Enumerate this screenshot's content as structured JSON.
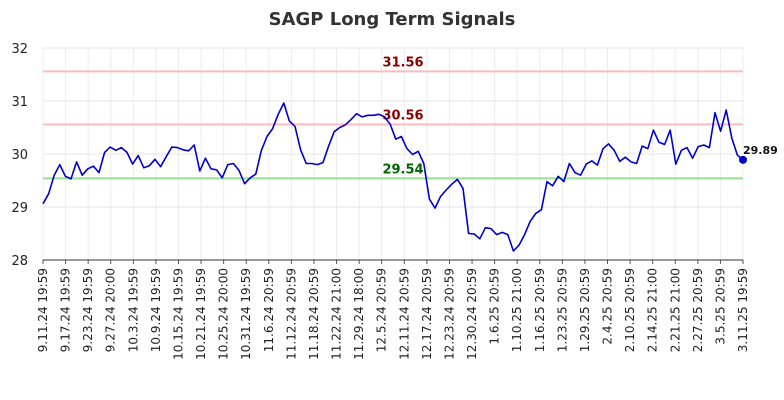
{
  "chart_data": {
    "type": "line",
    "title": "SAGP Long Term Signals",
    "xlabel": "",
    "ylabel": "",
    "ylim": [
      28,
      32
    ],
    "yticks": [
      "28",
      "29",
      "30",
      "31",
      "32"
    ],
    "grid": true,
    "x_tick_labels": [
      "9.11.24 19:59",
      "9.17.24 19:59",
      "9.23.24 19:59",
      "9.27.24 20:00",
      "10.3.24 19:59",
      "10.9.24 19:59",
      "10.15.24 19:59",
      "10.21.24 19:59",
      "10.25.24 20:00",
      "10.31.24 19:59",
      "11.6.24 20:59",
      "11.12.24 20:59",
      "11.18.24 20:59",
      "11.22.24 21:00",
      "11.29.24 18:00",
      "12.5.24 20:59",
      "12.11.24 20:59",
      "12.17.24 20:59",
      "12.23.24 20:59",
      "12.30.24 20:59",
      "1.6.25 20:59",
      "1.10.25 21:00",
      "1.16.25 20:59",
      "1.23.25 20:59",
      "1.29.25 20:59",
      "2.4.25 20:59",
      "2.10.25 20:59",
      "2.14.25 21:00",
      "2.21.25 21:00",
      "2.27.25 20:59",
      "3.5.25 20:59",
      "3.11.25 19:59"
    ],
    "series": [
      {
        "color": "#0000cc",
        "values": [
          29.06,
          29.25,
          29.6,
          29.8,
          29.58,
          29.53,
          29.85,
          29.6,
          29.72,
          29.77,
          29.65,
          30.03,
          30.13,
          30.07,
          30.12,
          30.03,
          29.81,
          29.97,
          29.74,
          29.78,
          29.9,
          29.76,
          29.95,
          30.13,
          30.12,
          30.08,
          30.06,
          30.17,
          29.68,
          29.92,
          29.72,
          29.7,
          29.55,
          29.8,
          29.82,
          29.69,
          29.44,
          29.55,
          29.62,
          30.07,
          30.33,
          30.48,
          30.75,
          30.96,
          30.62,
          30.52,
          30.08,
          29.82,
          29.82,
          29.8,
          29.84,
          30.15,
          30.42,
          30.5,
          30.55,
          30.65,
          30.76,
          30.7,
          30.73,
          30.73,
          30.75,
          30.7,
          30.56,
          30.28,
          30.33,
          30.1,
          29.99,
          30.05,
          29.82,
          29.15,
          28.98,
          29.2,
          29.32,
          29.43,
          29.52,
          29.35,
          28.5,
          28.49,
          28.4,
          28.61,
          28.59,
          28.48,
          28.52,
          28.48,
          28.17,
          28.28,
          28.48,
          28.73,
          28.88,
          28.95,
          29.48,
          29.4,
          29.58,
          29.48,
          29.82,
          29.65,
          29.6,
          29.81,
          29.87,
          29.79,
          30.1,
          30.19,
          30.07,
          29.86,
          29.94,
          29.85,
          29.82,
          30.15,
          30.1,
          30.45,
          30.22,
          30.18,
          30.45,
          29.81,
          30.07,
          30.12,
          29.92,
          30.14,
          30.17,
          30.12,
          30.78,
          30.43,
          30.83,
          30.3,
          29.98,
          29.89
        ]
      }
    ],
    "reference_lines": [
      {
        "value": 31.56,
        "label": "31.56",
        "line_color": "#ffbbbb",
        "label_color": "#8b0000"
      },
      {
        "value": 30.56,
        "label": "30.56",
        "line_color": "#ffbbbb",
        "label_color": "#8b0000"
      },
      {
        "value": 29.54,
        "label": "29.54",
        "line_color": "#99dd99",
        "label_color": "#006400"
      }
    ],
    "last_value": {
      "value": 29.89,
      "label": "29.89"
    }
  }
}
